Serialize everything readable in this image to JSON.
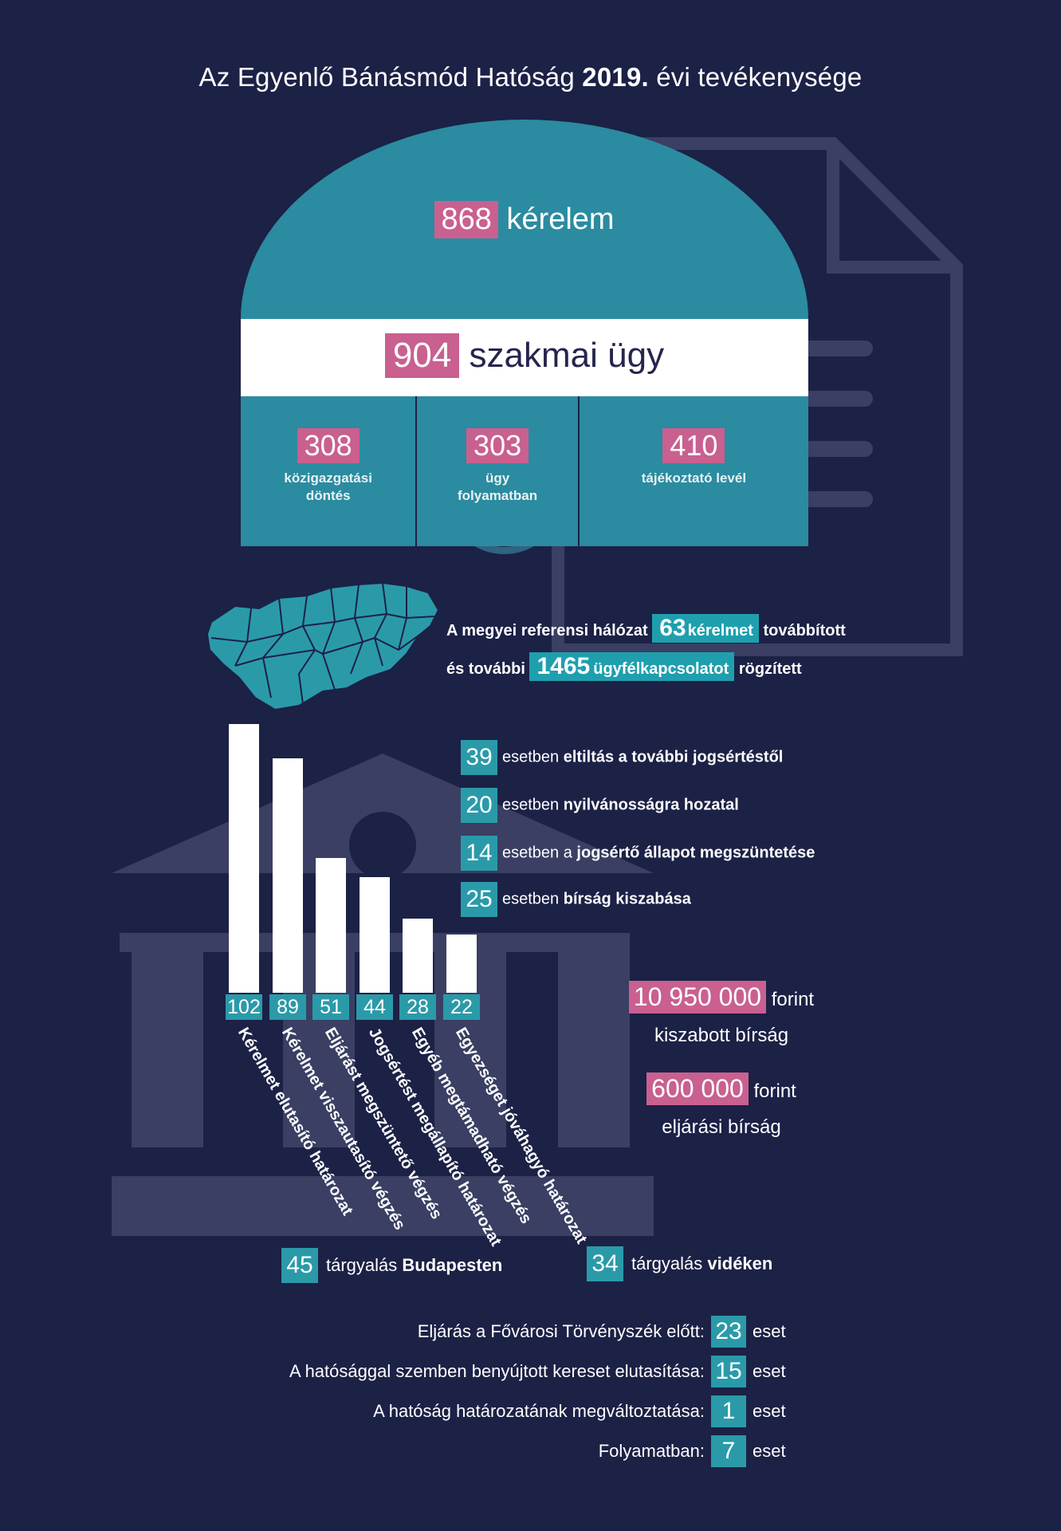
{
  "title_prefix": "Az Egyenlő Bánásmód Hatóság",
  "title_year": "2019.",
  "title_suffix": "évi tevékenysége",
  "requests": {
    "value": "868",
    "label": "kérelem"
  },
  "cases": {
    "value": "904",
    "label": "szakmai ügy"
  },
  "columns": [
    {
      "value": "308",
      "label1": "közigazgatási",
      "label2": "döntés"
    },
    {
      "value": "303",
      "label1": "ügy",
      "label2": "folyamatban"
    },
    {
      "value": "410",
      "label1": "tájékoztató levél",
      "label2": ""
    }
  ],
  "network": {
    "line1_prefix": "A megyei referensi hálózat",
    "line1_value": "63",
    "line1_highlight": "kérelmet",
    "line1_suffix": "továbbított",
    "line2_prefix": "és további",
    "line2_value": "1465",
    "line2_highlight": "ügyfélkapcsolatot",
    "line2_suffix": "rögzített"
  },
  "sanctions": [
    {
      "value": "39",
      "pre": "esetben",
      "bold": "eltiltás a további jogsértéstől"
    },
    {
      "value": "20",
      "pre": "esetben",
      "bold": "nyilvánosságra hozatal"
    },
    {
      "value": "14",
      "pre": "esetben a",
      "bold": "jogsértő állapot megszüntetése"
    },
    {
      "value": "25",
      "pre": "esetben",
      "bold": "bírság kiszabása"
    }
  ],
  "chart_data": {
    "type": "bar",
    "categories": [
      "Kérelmet elutasító határozat",
      "Kérelmet visszautasító végzés",
      "Eljárást megszüntető végzés",
      "Jogsértést megállapító határozat",
      "Egyéb megtámadható végzés",
      "Egyezséget jóváhagyó határozat"
    ],
    "values": [
      102,
      89,
      51,
      44,
      28,
      22
    ],
    "labels": [
      "102",
      "89",
      "51",
      "44",
      "28",
      "22"
    ],
    "ylim": [
      0,
      102
    ]
  },
  "fines": [
    {
      "value": "10 950 000",
      "unit": "forint",
      "label": "kiszabott bírság"
    },
    {
      "value": "600 000",
      "unit": "forint",
      "label": "eljárási bírság"
    }
  ],
  "hearings": [
    {
      "value": "45",
      "pre": "tárgyalás",
      "bold": "Budapesten"
    },
    {
      "value": "34",
      "pre": "tárgyalás",
      "bold": "vidéken"
    }
  ],
  "court": [
    {
      "label": "Eljárás a Fővárosi Törvényszék előtt:",
      "value": "23",
      "unit": "eset"
    },
    {
      "label": "A hatósággal szemben benyújtott kereset elutasítása:",
      "value": "15",
      "unit": "eset"
    },
    {
      "label": "A hatóság határozatának megváltoztatása:",
      "value": "1",
      "unit": "eset"
    },
    {
      "label": "Folyamatban:",
      "value": "7",
      "unit": "eset"
    }
  ],
  "colors": {
    "background": "#1c2146",
    "teal": "#2a9aa9",
    "pink": "#c9608f",
    "dome": "#2b8ba0"
  }
}
